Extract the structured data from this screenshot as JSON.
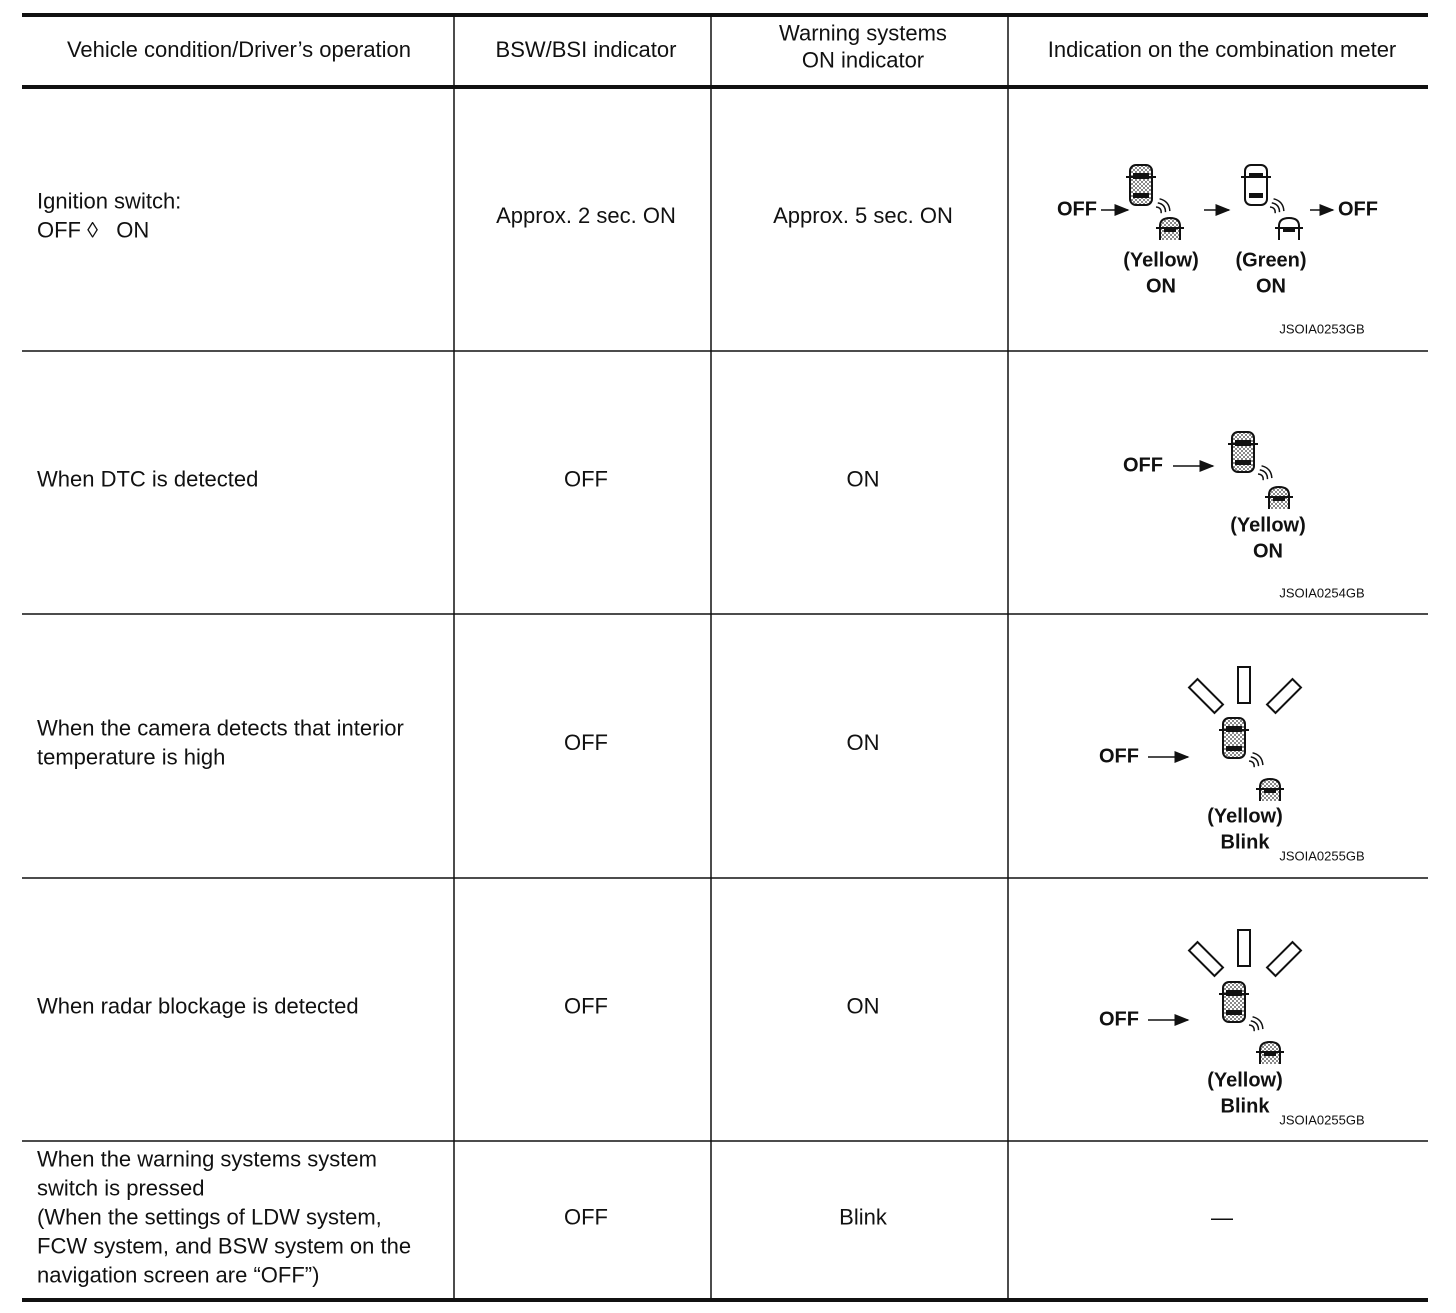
{
  "table": {
    "header": [
      [
        "Vehicle condition/Driver’s operation"
      ],
      [
        "BSW/BSI indicator"
      ],
      [
        "Warning systems",
        "ON indicator"
      ],
      [
        "Indication on the combination meter"
      ]
    ],
    "rows": [
      {
        "condition": [
          "Ignition switch:",
          "OFF ◊   ON"
        ],
        "bsw_bsi": "Approx. 2 sec. ON",
        "warning_on": "Approx. 5 sec. ON",
        "meter": {
          "labels": [
            "OFF",
            "OFF",
            "(Yellow)",
            "ON",
            "(Green)",
            "ON"
          ],
          "code": "JSOIA0253GB"
        }
      },
      {
        "condition": [
          "When DTC is detected"
        ],
        "bsw_bsi": "OFF",
        "warning_on": "ON",
        "meter": {
          "labels": [
            "OFF",
            "(Yellow)",
            "ON"
          ],
          "code": "JSOIA0254GB"
        }
      },
      {
        "condition": [
          "When the camera detects that interior",
          "temperature is high"
        ],
        "bsw_bsi": "OFF",
        "warning_on": "ON",
        "meter": {
          "labels": [
            "OFF",
            "(Yellow)",
            "Blink"
          ],
          "code": "JSOIA0255GB"
        }
      },
      {
        "condition": [
          "When radar blockage is detected"
        ],
        "bsw_bsi": "OFF",
        "warning_on": "ON",
        "meter": {
          "labels": [
            "OFF",
            "(Yellow)",
            "Blink"
          ],
          "code": "JSOIA0255GB"
        }
      },
      {
        "condition": [
          "When the warning systems system",
          "switch is pressed",
          "(When the settings of LDW system,",
          "FCW system, and BSW system on the",
          "navigation screen are “OFF”)"
        ],
        "bsw_bsi": "OFF",
        "warning_on": "Blink",
        "meter": {
          "text": "—"
        }
      }
    ]
  }
}
